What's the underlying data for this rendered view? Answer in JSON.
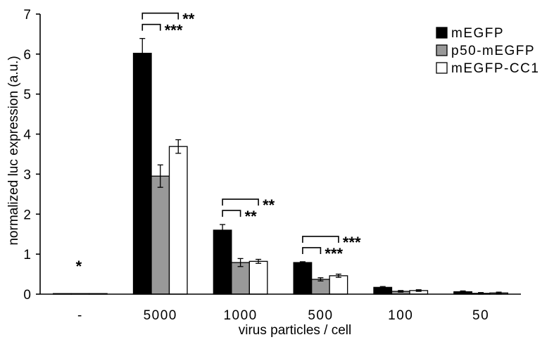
{
  "chart_data": {
    "type": "bar",
    "title": "",
    "xlabel": "virus particles / cell",
    "ylabel": "normalized luc expression (a.u.)",
    "ylim": [
      0,
      7
    ],
    "yticks": [
      0,
      1,
      2,
      3,
      4,
      5,
      6,
      7
    ],
    "grid": false,
    "legend_position": "top-right",
    "categories": [
      "-",
      "5000",
      "1000",
      "500",
      "100",
      "50"
    ],
    "series": [
      {
        "name": "mEGFP",
        "color": "#000000",
        "values": [
          0.01,
          6.02,
          1.6,
          0.79,
          0.17,
          0.06
        ],
        "errors": [
          0.0,
          0.37,
          0.14,
          0.02,
          0.02,
          0.02
        ]
      },
      {
        "name": "p50-mEGFP",
        "color": "#999999",
        "values": [
          0.0,
          2.95,
          0.79,
          0.37,
          0.07,
          0.02
        ],
        "errors": [
          0.0,
          0.28,
          0.1,
          0.04,
          0.02,
          0.02
        ]
      },
      {
        "name": "mEGFP-CC1",
        "color": "#ffffff",
        "values": [
          0.0,
          3.69,
          0.82,
          0.46,
          0.09,
          0.03
        ],
        "errors": [
          0.0,
          0.17,
          0.05,
          0.04,
          0.02,
          0.02
        ]
      }
    ],
    "annotations": [
      {
        "category": "-",
        "text": "*"
      },
      {
        "category": "5000",
        "compare": [
          "mEGFP",
          "mEGFP-CC1"
        ],
        "text": "**"
      },
      {
        "category": "5000",
        "compare": [
          "mEGFP",
          "p50-mEGFP"
        ],
        "text": "***"
      },
      {
        "category": "1000",
        "compare": [
          "mEGFP",
          "mEGFP-CC1"
        ],
        "text": "**"
      },
      {
        "category": "1000",
        "compare": [
          "mEGFP",
          "p50-mEGFP"
        ],
        "text": "**"
      },
      {
        "category": "500",
        "compare": [
          "mEGFP",
          "mEGFP-CC1"
        ],
        "text": "***"
      },
      {
        "category": "500",
        "compare": [
          "mEGFP",
          "p50-mEGFP"
        ],
        "text": "***"
      }
    ]
  }
}
